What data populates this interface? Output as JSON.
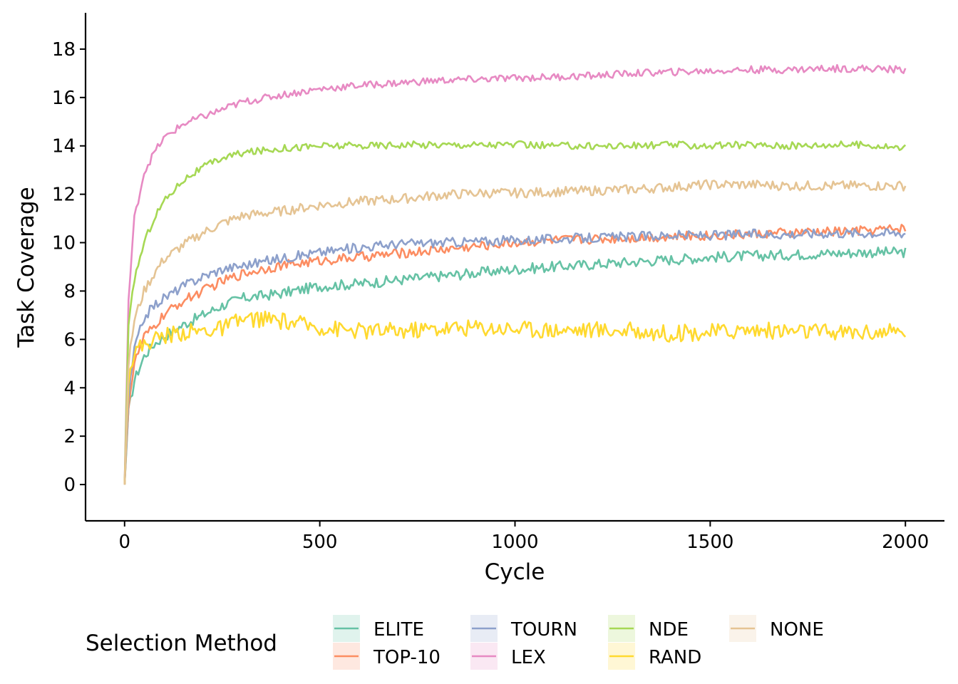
{
  "chart_data": {
    "type": "line",
    "title": "",
    "xlabel": "Cycle",
    "ylabel": "Task Coverage",
    "xlim": [
      -100,
      2100
    ],
    "ylim": [
      -1.5,
      19.5
    ],
    "xticks": [
      0,
      500,
      1000,
      1500,
      2000
    ],
    "yticks": [
      0,
      2,
      4,
      6,
      8,
      10,
      12,
      14,
      16,
      18
    ],
    "grid": false,
    "legend": {
      "title": "Selection Method",
      "position": "bottom"
    },
    "x": [
      0,
      10,
      25,
      50,
      75,
      100,
      150,
      200,
      250,
      300,
      350,
      400,
      500,
      600,
      700,
      800,
      900,
      1000,
      1100,
      1200,
      1300,
      1400,
      1500,
      1600,
      1700,
      1800,
      1900,
      2000
    ],
    "series": [
      {
        "name": "ELITE",
        "color": "#66c2a5",
        "values": [
          0,
          3.0,
          4.3,
          5.3,
          5.8,
          6.1,
          6.6,
          7.0,
          7.4,
          7.7,
          7.8,
          7.9,
          8.2,
          8.3,
          8.45,
          8.6,
          8.75,
          8.9,
          9.0,
          9.1,
          9.2,
          9.3,
          9.4,
          9.45,
          9.5,
          9.55,
          9.6,
          9.6
        ]
      },
      {
        "name": "TOP-10",
        "color": "#fc8d62",
        "values": [
          0,
          3.3,
          5.0,
          6.1,
          6.5,
          7.0,
          7.6,
          8.0,
          8.4,
          8.7,
          8.9,
          9.05,
          9.25,
          9.4,
          9.55,
          9.7,
          9.85,
          10.0,
          10.1,
          10.15,
          10.2,
          10.25,
          10.3,
          10.35,
          10.4,
          10.45,
          10.5,
          10.6
        ]
      },
      {
        "name": "TOURN",
        "color": "#8da0cb",
        "values": [
          0,
          3.6,
          5.6,
          6.9,
          7.4,
          7.7,
          8.2,
          8.6,
          8.9,
          9.05,
          9.2,
          9.35,
          9.6,
          9.8,
          9.95,
          10.0,
          10.05,
          10.1,
          10.15,
          10.2,
          10.25,
          10.3,
          10.3,
          10.35,
          10.35,
          10.4,
          10.4,
          10.4
        ]
      },
      {
        "name": "LEX",
        "color": "#e78ac3",
        "values": [
          0,
          7.6,
          11.0,
          12.9,
          13.7,
          14.3,
          14.9,
          15.2,
          15.5,
          15.8,
          15.95,
          16.1,
          16.35,
          16.5,
          16.6,
          16.7,
          16.75,
          16.8,
          16.85,
          16.9,
          17.0,
          17.05,
          17.1,
          17.15,
          17.15,
          17.2,
          17.2,
          17.15
        ]
      },
      {
        "name": "NDE",
        "color": "#a6d854",
        "values": [
          0,
          6.5,
          8.5,
          10.0,
          11.0,
          11.7,
          12.6,
          13.1,
          13.5,
          13.7,
          13.8,
          13.9,
          14.0,
          14.0,
          14.05,
          14.05,
          14.05,
          14.05,
          14.0,
          14.0,
          14.0,
          14.05,
          14.0,
          14.05,
          14.0,
          14.05,
          14.05,
          13.9
        ]
      },
      {
        "name": "RAND",
        "color": "#ffd92f",
        "values": [
          0,
          4.5,
          5.5,
          5.8,
          6.0,
          6.15,
          6.3,
          6.35,
          6.45,
          6.8,
          6.85,
          6.75,
          6.5,
          6.35,
          6.35,
          6.45,
          6.5,
          6.45,
          6.4,
          6.4,
          6.35,
          6.25,
          6.3,
          6.4,
          6.35,
          6.3,
          6.3,
          6.3
        ]
      },
      {
        "name": "NONE",
        "color": "#e5c494",
        "values": [
          0,
          5.0,
          6.8,
          8.0,
          8.7,
          9.3,
          9.9,
          10.4,
          10.8,
          11.1,
          11.2,
          11.3,
          11.55,
          11.7,
          11.8,
          11.95,
          12.05,
          12.05,
          12.1,
          12.15,
          12.2,
          12.3,
          12.4,
          12.4,
          12.35,
          12.35,
          12.35,
          12.35
        ]
      }
    ]
  }
}
